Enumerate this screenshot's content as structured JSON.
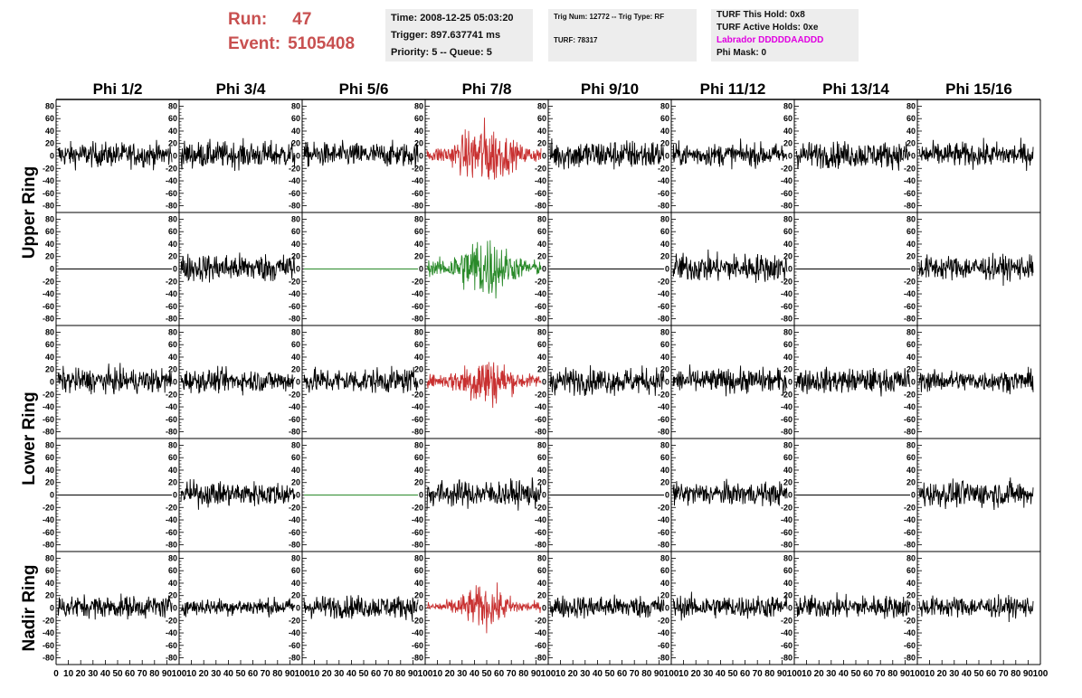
{
  "header": {
    "run_label": "Run:",
    "run_value": "47",
    "event_label": "Event:",
    "event_value": "5105408",
    "time_line": "Time: 2008-12-25 05:03:20",
    "trigger_line": "Trigger: 897.637741 ms",
    "priority_line": "Priority: 5 -- Queue: 5",
    "trig_line": "Trig Num: 12772 -- Trig Type: RF",
    "turf_line": "TURF: 78317",
    "turf_hold_line": "TURF This Hold: 0x8",
    "turf_active_line": "TURF Active Holds: 0xe",
    "labrador_line": "Labrador DDDDDAADDD",
    "phimask_line": "Phi Mask: 0"
  },
  "colors": {
    "trace": "#000000",
    "triggered_v": "#c83030",
    "triggered_h": "#2a8a2a",
    "title_red": "#c85050",
    "labrador": "#e000e0",
    "box_bg": "#ededed"
  },
  "chart_data": {
    "type": "line",
    "columns": [
      "Phi 1/2",
      "Phi 3/4",
      "Phi 5/6",
      "Phi 7/8",
      "Phi 9/10",
      "Phi 11/12",
      "Phi 13/14",
      "Phi 15/16"
    ],
    "rings": [
      "Upper Ring",
      "Lower Ring",
      "Nadir Ring"
    ],
    "x_ticks": [
      "0",
      "10",
      "20",
      "30",
      "40",
      "50",
      "60",
      "70",
      "80",
      "90",
      "100"
    ],
    "y_ticks": [
      "80",
      "60",
      "40",
      "20",
      "0",
      "-20",
      "-40",
      "-60",
      "-80"
    ],
    "xlim": [
      0,
      100
    ],
    "ylim": [
      -85,
      85
    ],
    "rows": [
      {
        "ring": 0,
        "types": [
          "n",
          "n",
          "n",
          "r",
          "n",
          "n",
          "n",
          "n"
        ],
        "amps": [
          13,
          14,
          13,
          22,
          16,
          12,
          14,
          13
        ]
      },
      {
        "ring": 0,
        "types": [
          "f",
          "n",
          "g",
          "g",
          "f",
          "n",
          "f",
          "n"
        ],
        "amps": [
          0,
          15,
          0,
          22,
          0,
          15,
          0,
          13
        ]
      },
      {
        "ring": 1,
        "types": [
          "n",
          "n",
          "n",
          "r",
          "n",
          "n",
          "n",
          "n"
        ],
        "amps": [
          13,
          12,
          13,
          18,
          14,
          13,
          13,
          11
        ]
      },
      {
        "ring": 1,
        "types": [
          "f",
          "n",
          "g",
          "n",
          "f",
          "n",
          "f",
          "n"
        ],
        "amps": [
          0,
          13,
          0,
          14,
          0,
          12,
          0,
          14
        ]
      },
      {
        "ring": 2,
        "types": [
          "n",
          "n",
          "n",
          "r",
          "n",
          "n",
          "n",
          "n"
        ],
        "amps": [
          12,
          9,
          12,
          14,
          12,
          12,
          12,
          11
        ]
      }
    ]
  }
}
